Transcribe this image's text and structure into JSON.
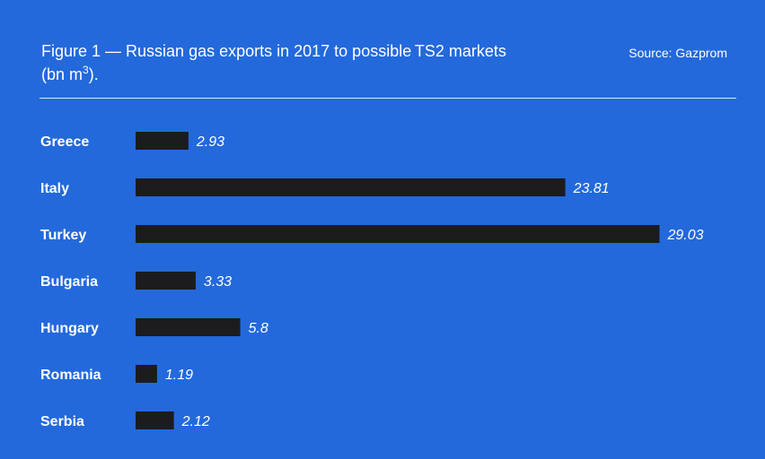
{
  "header": {
    "title_main": "Figure 1  — Russian gas exports in 2017 to possible TS2 markets",
    "title_unit_prefix": "(bn m",
    "title_unit_sup": "3",
    "title_unit_suffix": ").",
    "source": "Source: Gazprom"
  },
  "colors": {
    "background": "#2369dc",
    "bar": "#1c1c1e",
    "text": "#ffffff"
  },
  "chart_data": {
    "type": "bar",
    "orientation": "horizontal",
    "categories": [
      "Greece",
      "Italy",
      "Turkey",
      "Bulgaria",
      "Hungary",
      "Romania",
      "Serbia"
    ],
    "values": [
      2.93,
      23.81,
      29.03,
      3.33,
      5.8,
      1.19,
      2.12
    ],
    "value_labels": [
      "2.93",
      "23.81",
      "29.03",
      "3.33",
      "5.8",
      "1.19",
      "2.12"
    ],
    "grid": false,
    "legend": "none"
  }
}
